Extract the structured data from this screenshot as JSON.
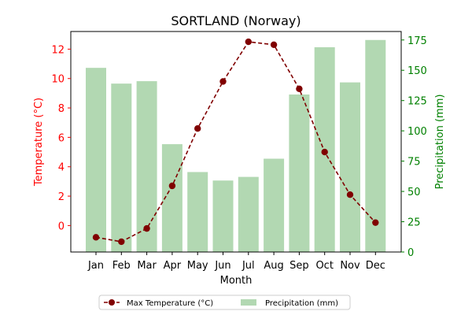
{
  "chart_data": {
    "type": "bar+line",
    "title": "SORTLAND (Norway)",
    "xlabel": "Month",
    "categories": [
      "Jan",
      "Feb",
      "Mar",
      "Apr",
      "May",
      "Jun",
      "Jul",
      "Aug",
      "Sep",
      "Oct",
      "Nov",
      "Dec"
    ],
    "left_axis": {
      "label": "Temperature (°C)",
      "color": "#ff0000",
      "ylim": [
        -1.8,
        13.2
      ],
      "ticks": [
        0,
        2,
        4,
        6,
        8,
        10,
        12
      ]
    },
    "right_axis": {
      "label": "Precipitation (mm)",
      "color": "#008000",
      "ylim": [
        0,
        182
      ],
      "ticks": [
        0,
        25,
        50,
        75,
        100,
        125,
        150,
        175
      ]
    },
    "series": [
      {
        "name": "Max Temperature (°C)",
        "kind": "line",
        "axis": "left",
        "color": "#800000",
        "line_style": "dashed",
        "marker": "circle",
        "values": [
          -0.8,
          -1.1,
          -0.2,
          2.7,
          6.6,
          9.8,
          12.5,
          12.3,
          9.3,
          5.0,
          2.1,
          0.2
        ]
      },
      {
        "name": "Precipitation (mm)",
        "kind": "bar",
        "axis": "right",
        "color": "#b2d8b2",
        "values": [
          152,
          139,
          141,
          89,
          66,
          59,
          62,
          77,
          130,
          169,
          140,
          175
        ]
      }
    ],
    "legend": {
      "placement": "bottom-center",
      "columns": 2
    },
    "grid": false
  }
}
